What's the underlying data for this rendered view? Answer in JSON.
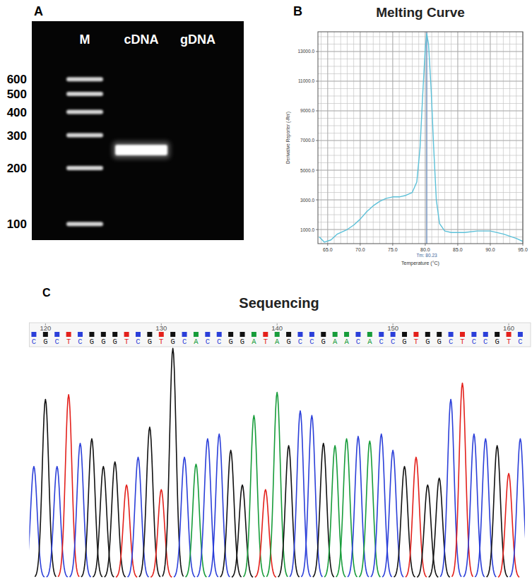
{
  "chart_data": [
    {
      "type": "gel",
      "panel": "A",
      "categories": [
        "M",
        "cDNA",
        "gDNA"
      ],
      "values": [
        [
          100,
          200,
          300,
          400,
          500,
          600
        ],
        [
          250
        ],
        []
      ],
      "ylim": [
        82,
        1230
      ],
      "yticks": [
        100,
        200,
        300,
        400,
        500,
        600
      ],
      "log": "y"
    },
    {
      "type": "line",
      "panel": "B",
      "title": "Melting Curve",
      "x_label": "Temperature (°C)",
      "y_label": "Derivative Reporter (-Rn')",
      "x": [
        63.7,
        64.5,
        65.5,
        66.5,
        68,
        69,
        70,
        71,
        72,
        73,
        74,
        75,
        76,
        77,
        78,
        78.7,
        79.2,
        79.6,
        80,
        80.23,
        80.5,
        80.9,
        81.3,
        81.7,
        82.2,
        83,
        84,
        86,
        88,
        90,
        92,
        94,
        95
      ],
      "values": [
        500,
        150,
        300,
        700,
        1000,
        1300,
        1700,
        2200,
        2600,
        2900,
        3100,
        3200,
        3200,
        3300,
        3500,
        4200,
        6500,
        10000,
        13200,
        14200,
        13500,
        10500,
        6500,
        3000,
        1400,
        900,
        800,
        800,
        900,
        900,
        700,
        400,
        200
      ],
      "color": "#5bc0d8",
      "xlim": [
        63.5,
        95
      ],
      "ylim": [
        50,
        14330
      ],
      "xticks": [
        {
          "value": 65,
          "label": "65.0"
        },
        {
          "value": 70,
          "label": "70.0"
        },
        {
          "value": 75,
          "label": "75.0"
        },
        {
          "value": 80,
          "label": "80.0"
        },
        {
          "value": 85,
          "label": "85.0"
        },
        {
          "value": 90,
          "label": "90.0"
        },
        {
          "value": 95,
          "label": "95.0"
        }
      ],
      "yticks": [
        {
          "value": 1000,
          "label": "1000.0"
        },
        {
          "value": 3000,
          "label": "3000.0"
        },
        {
          "value": 5000,
          "label": "5000.0"
        },
        {
          "value": 7000,
          "label": "7000.0"
        },
        {
          "value": 9000,
          "label": "9000.0"
        },
        {
          "value": 11000,
          "label": "11000.0"
        },
        {
          "value": 13000,
          "label": "13000.0"
        }
      ],
      "grid": true,
      "annotations": [
        {
          "text": "Tm: 80.23",
          "x": 80.23
        }
      ]
    },
    {
      "type": "chromatogram",
      "panel": "C",
      "title": "Sequencing",
      "x": [
        119,
        120,
        121,
        122,
        123,
        124,
        125,
        126,
        127,
        128,
        129,
        130,
        131,
        132,
        133,
        134,
        135,
        136,
        137,
        138,
        139,
        140,
        141,
        142,
        143,
        144,
        145,
        146,
        147,
        148,
        149,
        150,
        151,
        152,
        153,
        154,
        155,
        156,
        157,
        158,
        159,
        160,
        161
      ],
      "categories": [
        "C",
        "G",
        "C",
        "T",
        "C",
        "G",
        "G",
        "G",
        "T",
        "C",
        "G",
        "T",
        "G",
        "C",
        "A",
        "C",
        "C",
        "G",
        "G",
        "A",
        "T",
        "A",
        "G",
        "C",
        "C",
        "G",
        "A",
        "A",
        "C",
        "A",
        "C",
        "C",
        "G",
        "T",
        "G",
        "G",
        "C",
        "T",
        "C",
        "C",
        "G",
        "T",
        "C"
      ],
      "values": [
        48,
        77,
        48,
        79,
        58,
        60,
        48,
        50,
        40,
        52,
        65,
        38,
        99,
        52,
        49,
        60,
        62,
        55,
        40,
        70,
        38,
        80,
        57,
        72,
        70,
        58,
        57,
        60,
        61,
        59,
        62,
        55,
        48,
        52,
        40,
        43,
        77,
        84,
        62,
        60,
        57,
        45,
        60
      ],
      "colors": [
        "#2b3fd9",
        "#111111",
        "#2b3fd9",
        "#e3201b",
        "#2b3fd9",
        "#111111",
        "#111111",
        "#111111",
        "#e3201b",
        "#2b3fd9",
        "#111111",
        "#e3201b",
        "#111111",
        "#2b3fd9",
        "#179c3a",
        "#2b3fd9",
        "#2b3fd9",
        "#111111",
        "#111111",
        "#179c3a",
        "#e3201b",
        "#179c3a",
        "#111111",
        "#2b3fd9",
        "#2b3fd9",
        "#111111",
        "#179c3a",
        "#179c3a",
        "#2b3fd9",
        "#179c3a",
        "#2b3fd9",
        "#2b3fd9",
        "#111111",
        "#e3201b",
        "#111111",
        "#111111",
        "#2b3fd9",
        "#e3201b",
        "#2b3fd9",
        "#2b3fd9",
        "#111111",
        "#e3201b",
        "#2b3fd9"
      ],
      "xlim": [
        118.6,
        161.4
      ],
      "ylim": [
        0,
        100
      ],
      "xticks": [
        120,
        130,
        140,
        150,
        160
      ],
      "tick_labels": "x"
    }
  ]
}
